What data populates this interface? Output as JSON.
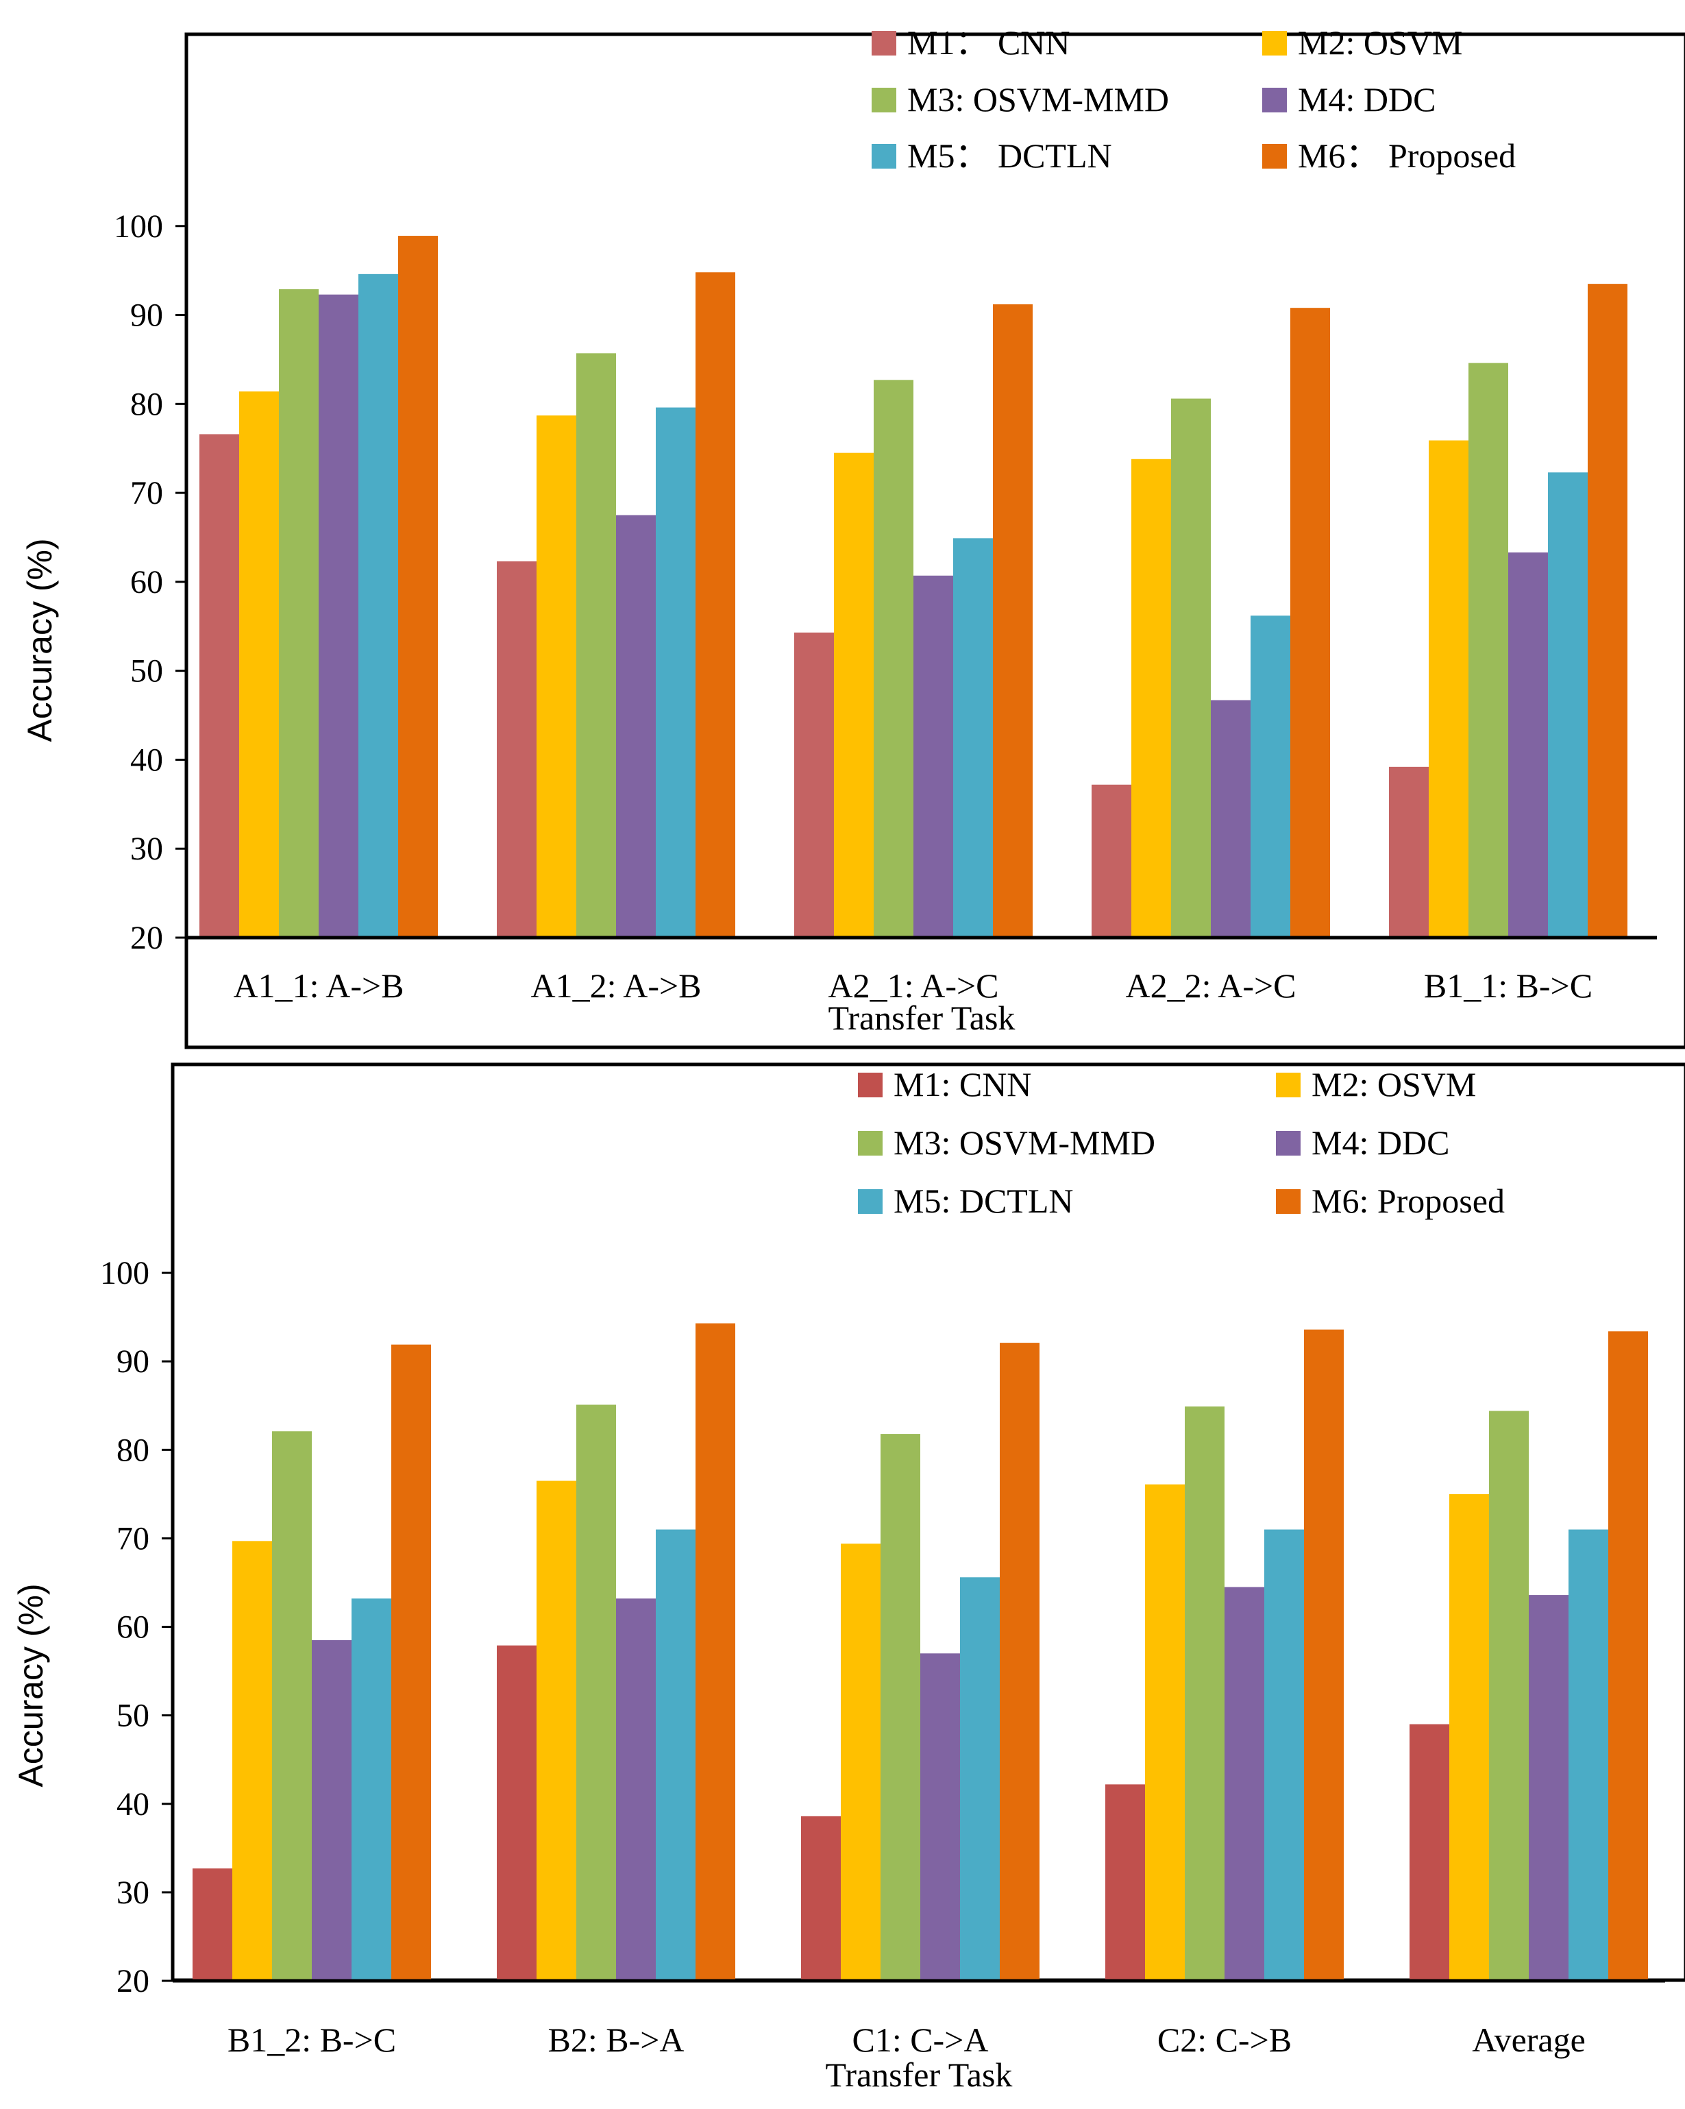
{
  "chart_data": [
    {
      "type": "bar",
      "title": "",
      "xlabel": "Transfer Task",
      "ylabel": "Accuracy (%)",
      "ylim": [
        20,
        110
      ],
      "yticks": [
        20,
        30,
        40,
        50,
        60,
        70,
        80,
        90,
        100
      ],
      "grid": false,
      "legend_position": "top-right",
      "categories": [
        "A1_1: A->B",
        "A1_2: A->B",
        "A2_1: A->C",
        "A2_2: A->C",
        "B1_1: B->C"
      ],
      "series": [
        {
          "name": "M1： CNN",
          "color": "#c46363",
          "values": [
            76.6,
            62.3,
            54.3,
            37.2,
            39.2
          ]
        },
        {
          "name": "M2: OSVM",
          "color": "#ffc000",
          "values": [
            81.4,
            78.7,
            74.5,
            73.8,
            75.9
          ]
        },
        {
          "name": "M3: OSVM-MMD",
          "color": "#9bbb59",
          "values": [
            92.9,
            85.7,
            82.7,
            80.6,
            84.6
          ]
        },
        {
          "name": "M4: DDC",
          "color": "#8064a2",
          "values": [
            92.3,
            67.5,
            60.7,
            46.7,
            63.3
          ]
        },
        {
          "name": "M5： DCTLN",
          "color": "#4bacc6",
          "values": [
            94.6,
            79.6,
            64.9,
            56.2,
            72.3
          ]
        },
        {
          "name": "M6： Proposed",
          "color": "#e46c0a",
          "values": [
            98.9,
            94.8,
            91.2,
            90.8,
            93.5
          ]
        }
      ]
    },
    {
      "type": "bar",
      "title": "",
      "xlabel": "Transfer Task",
      "ylabel": "Accuracy (%)",
      "ylim": [
        20,
        110
      ],
      "yticks": [
        20,
        30,
        40,
        50,
        60,
        70,
        80,
        90,
        100
      ],
      "grid": false,
      "legend_position": "top-right",
      "categories": [
        "B1_2: B->C",
        "B2: B->A",
        "C1: C->A",
        "C2: C->B",
        "Average"
      ],
      "series": [
        {
          "name": "M1: CNN",
          "color": "#c0504d",
          "values": [
            32.7,
            57.9,
            38.6,
            42.2,
            49.0
          ]
        },
        {
          "name": "M2: OSVM",
          "color": "#ffc000",
          "values": [
            69.7,
            76.5,
            69.4,
            76.1,
            75.0
          ]
        },
        {
          "name": "M3: OSVM-MMD",
          "color": "#9bbb59",
          "values": [
            82.1,
            85.1,
            81.8,
            84.9,
            84.4
          ]
        },
        {
          "name": "M4: DDC",
          "color": "#8064a2",
          "values": [
            58.5,
            63.2,
            57.0,
            64.5,
            63.6
          ]
        },
        {
          "name": "M5: DCTLN",
          "color": "#4bacc6",
          "values": [
            63.2,
            71.0,
            65.6,
            71.0,
            71.0
          ]
        },
        {
          "name": "M6: Proposed",
          "color": "#e46c0a",
          "values": [
            91.9,
            94.3,
            92.1,
            93.6,
            93.4
          ]
        }
      ]
    }
  ]
}
